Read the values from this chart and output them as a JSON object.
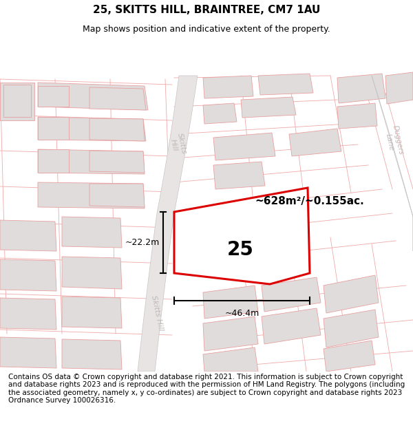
{
  "title": "25, SKITTS HILL, BRAINTREE, CM7 1AU",
  "subtitle": "Map shows position and indicative extent of the property.",
  "footer": "Contains OS data © Crown copyright and database right 2021. This information is subject to Crown copyright and database rights 2023 and is reproduced with the permission of HM Land Registry. The polygons (including the associated geometry, namely x, y co-ordinates) are subject to Crown copyright and database rights 2023 Ordnance Survey 100026316.",
  "map_bg": "#ffffff",
  "road_fill": "#e8e4e4",
  "road_outline": "#c8c4c4",
  "plot_outline_color": "#dd0000",
  "plot_fill_color": "#ffffff",
  "plot_label": "25",
  "area_label": "~628m²/~0.155ac.",
  "dim_h": "~22.2m",
  "dim_w": "~46.4m",
  "building_fill": "#e0dcdc",
  "building_outline": "#e8a0a0",
  "lot_line_color": "#f0a8a8",
  "road_text_color": "#c0b8b8",
  "title_fontsize": 11,
  "subtitle_fontsize": 9,
  "footer_fontsize": 7.5
}
